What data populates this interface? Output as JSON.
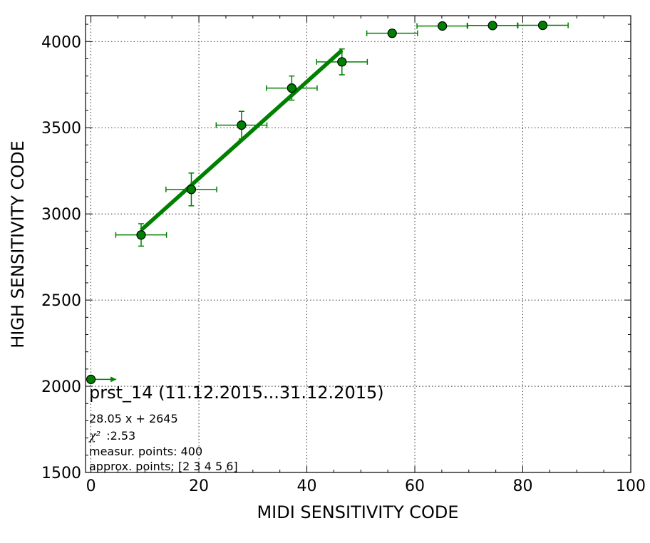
{
  "chart_data": {
    "type": "scatter",
    "title": "",
    "xlabel": "MIDI SENSITIVITY CODE",
    "ylabel": "HIGH SENSITIVITY CODE",
    "xlim": [
      -1,
      100
    ],
    "ylim": [
      1500,
      4150
    ],
    "grid": true,
    "x_ticks": [
      0,
      20,
      40,
      60,
      80,
      100
    ],
    "y_ticks": [
      1500,
      2000,
      2500,
      3000,
      3500,
      4000
    ],
    "colors": {
      "series": "#008000",
      "marker_edge": "#000000"
    },
    "points": [
      {
        "x": 0.0,
        "y": 2040,
        "xerr_minus": 0,
        "xerr_plus": 4.7,
        "yerr": 20,
        "x_arrow": true
      },
      {
        "x": 9.3,
        "y": 2878,
        "xerr_minus": 4.7,
        "xerr_plus": 4.7,
        "yerr": 65
      },
      {
        "x": 18.6,
        "y": 3142,
        "xerr_minus": 4.7,
        "xerr_plus": 4.7,
        "yerr": 95
      },
      {
        "x": 27.9,
        "y": 3515,
        "xerr_minus": 4.7,
        "xerr_plus": 4.7,
        "yerr": 80
      },
      {
        "x": 37.2,
        "y": 3730,
        "xerr_minus": 4.7,
        "xerr_plus": 4.7,
        "yerr": 70
      },
      {
        "x": 46.5,
        "y": 3882,
        "xerr_minus": 4.7,
        "xerr_plus": 4.7,
        "yerr": 75
      },
      {
        "x": 55.8,
        "y": 4048,
        "xerr_minus": 4.7,
        "xerr_plus": 4.7,
        "yerr": 20
      },
      {
        "x": 65.1,
        "y": 4090,
        "xerr_minus": 4.7,
        "xerr_plus": 4.7,
        "yerr": 10
      },
      {
        "x": 74.4,
        "y": 4093,
        "xerr_minus": 4.7,
        "xerr_plus": 4.7,
        "yerr": 10
      },
      {
        "x": 83.7,
        "y": 4094,
        "xerr_minus": 4.7,
        "xerr_plus": 4.7,
        "yerr": 10
      }
    ],
    "fit_line": {
      "slope": 28.05,
      "intercept": 2645,
      "x_start": 9.3,
      "x_end": 46.5
    },
    "annotation": {
      "title": "prst_14 (11.12.2015...31.12.2015)",
      "equation": "28.05 x + 2645",
      "chi2_label": "χ²",
      "chi2_value": ":2.53",
      "measur_points": "measur. points: 400",
      "approx_points": "approx. points: [2 3 4 5 6]"
    }
  }
}
